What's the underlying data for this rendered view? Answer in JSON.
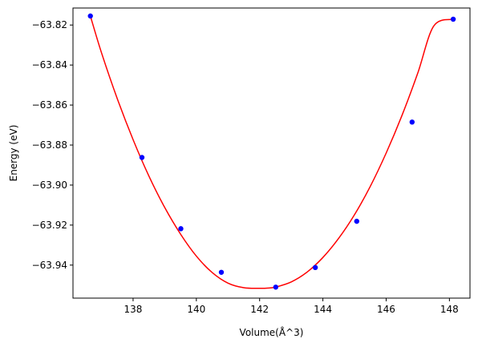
{
  "chart_data": {
    "type": "scatter",
    "xlabel": "Volume(Å^3)",
    "ylabel": "Energy (eV)",
    "xlim": [
      136.1,
      148.65
    ],
    "ylim": [
      -63.9565,
      -63.8115
    ],
    "x_ticks": [
      138,
      140,
      142,
      144,
      146,
      148
    ],
    "x_tick_labels": [
      "138",
      "140",
      "142",
      "144",
      "146",
      "148"
    ],
    "y_ticks": [
      -63.82,
      -63.84,
      -63.86,
      -63.88,
      -63.9,
      -63.92,
      -63.94
    ],
    "y_tick_labels": [
      "−63.82",
      "−63.84",
      "−63.86",
      "−63.88",
      "−63.90",
      "−63.92",
      "−63.94"
    ],
    "grid": false,
    "series": [
      {
        "kind": "points",
        "color": "#0000ff",
        "x": [
          136.65,
          138.28,
          139.51,
          140.79,
          142.51,
          143.76,
          145.07,
          146.82,
          148.12
        ],
        "y": [
          -63.8155,
          -63.8862,
          -63.9218,
          -63.9436,
          -63.951,
          -63.9412,
          -63.9181,
          -63.8685,
          -63.8171
        ]
      },
      {
        "kind": "fit-curve",
        "color": "#ff0000",
        "x": [
          136.65,
          137.0,
          137.5,
          138.0,
          138.5,
          139.0,
          139.5,
          140.0,
          140.5,
          141.0,
          141.5,
          142.0,
          142.25,
          142.5,
          143.0,
          143.5,
          144.0,
          144.5,
          145.0,
          145.5,
          146.0,
          146.5,
          147.0,
          147.5,
          148.12
        ],
        "y": [
          -63.8155,
          -63.8338,
          -63.8568,
          -63.8773,
          -63.8955,
          -63.9112,
          -63.9245,
          -63.9355,
          -63.9437,
          -63.949,
          -63.9513,
          -63.9516,
          -63.9515,
          -63.951,
          -63.9484,
          -63.9435,
          -63.9362,
          -63.9266,
          -63.9148,
          -63.9006,
          -63.884,
          -63.8652,
          -63.844,
          -63.8206,
          -63.8171
        ]
      }
    ]
  }
}
